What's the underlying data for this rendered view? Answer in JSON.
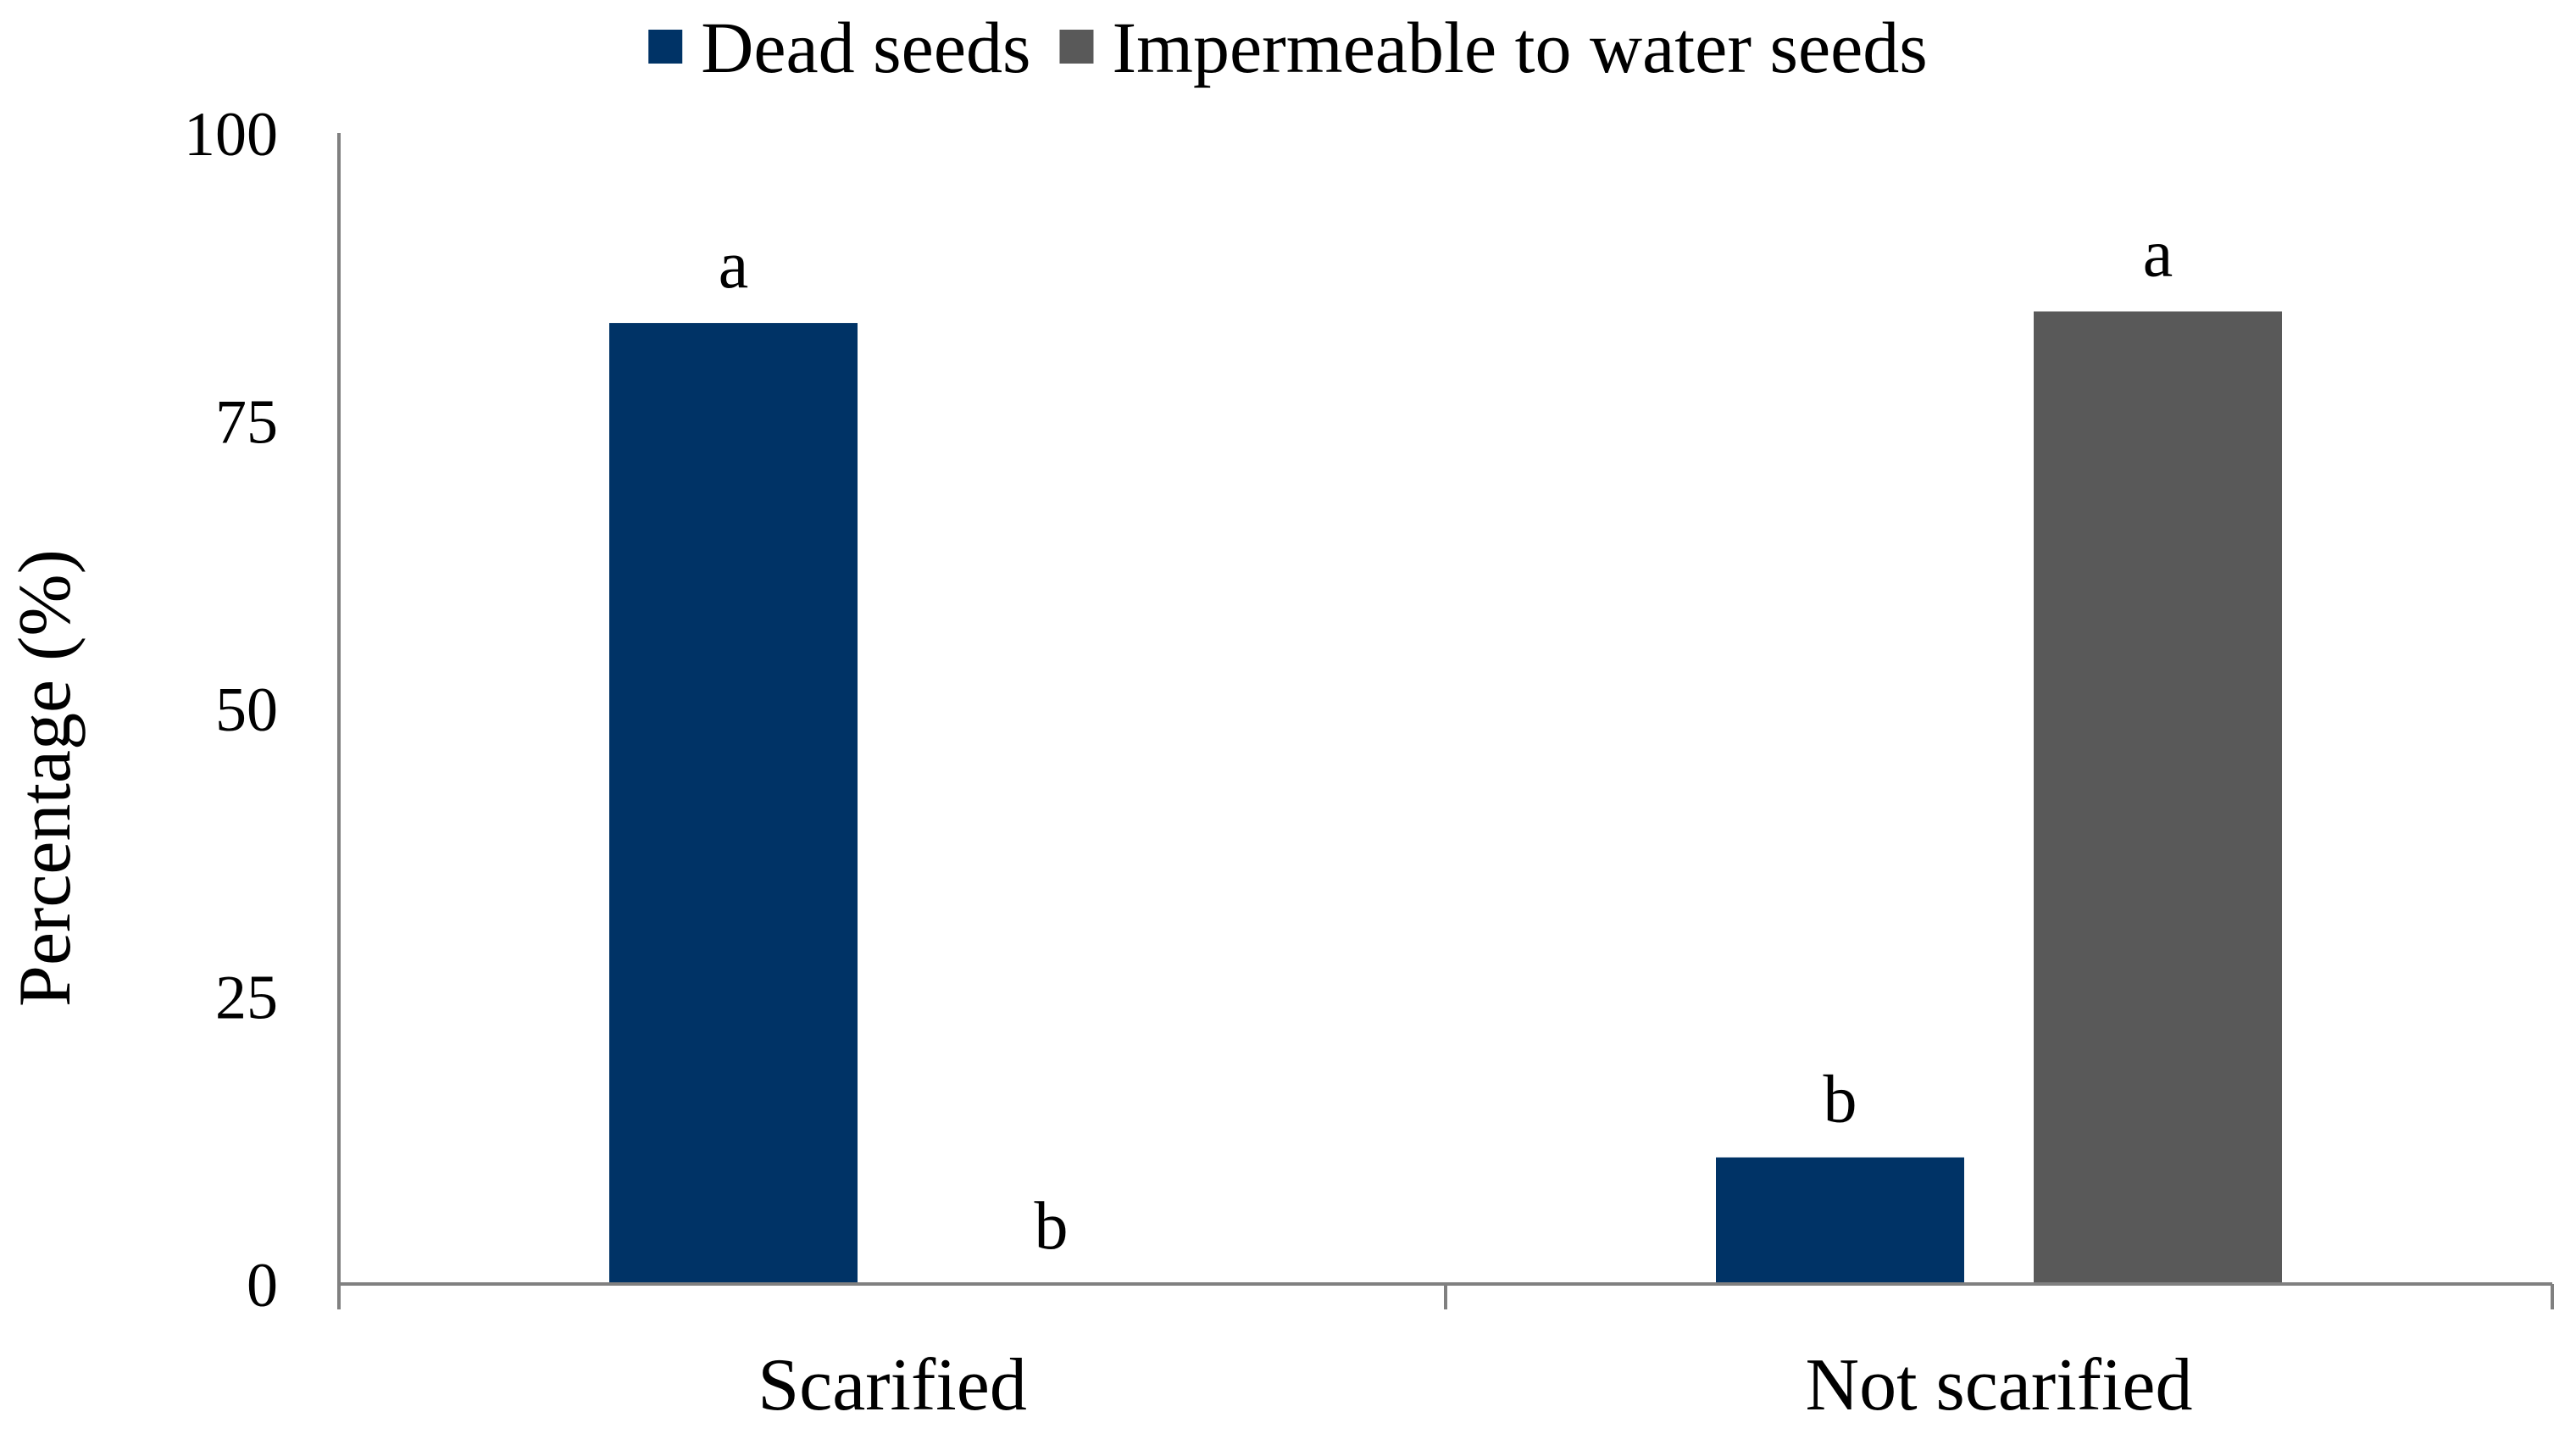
{
  "chart_data": {
    "type": "bar",
    "categories": [
      "Scarified",
      "Not scarified"
    ],
    "series": [
      {
        "name": "Dead seeds",
        "color": "#003366",
        "values": [
          83.5,
          11.0
        ],
        "significance_labels": [
          "a",
          "b"
        ]
      },
      {
        "name": "Impermeable to water seeds",
        "color": "#595959",
        "values": [
          0,
          84.5
        ],
        "significance_labels": [
          "b",
          "a"
        ]
      }
    ],
    "title": "",
    "xlabel": "",
    "ylabel": "Percentage  (%)",
    "ylim": [
      0,
      100
    ],
    "yticks": [
      "0",
      "25",
      "50",
      "75",
      "100"
    ],
    "grid": false,
    "legend_position": "top-center",
    "axis_color": "#808080"
  }
}
